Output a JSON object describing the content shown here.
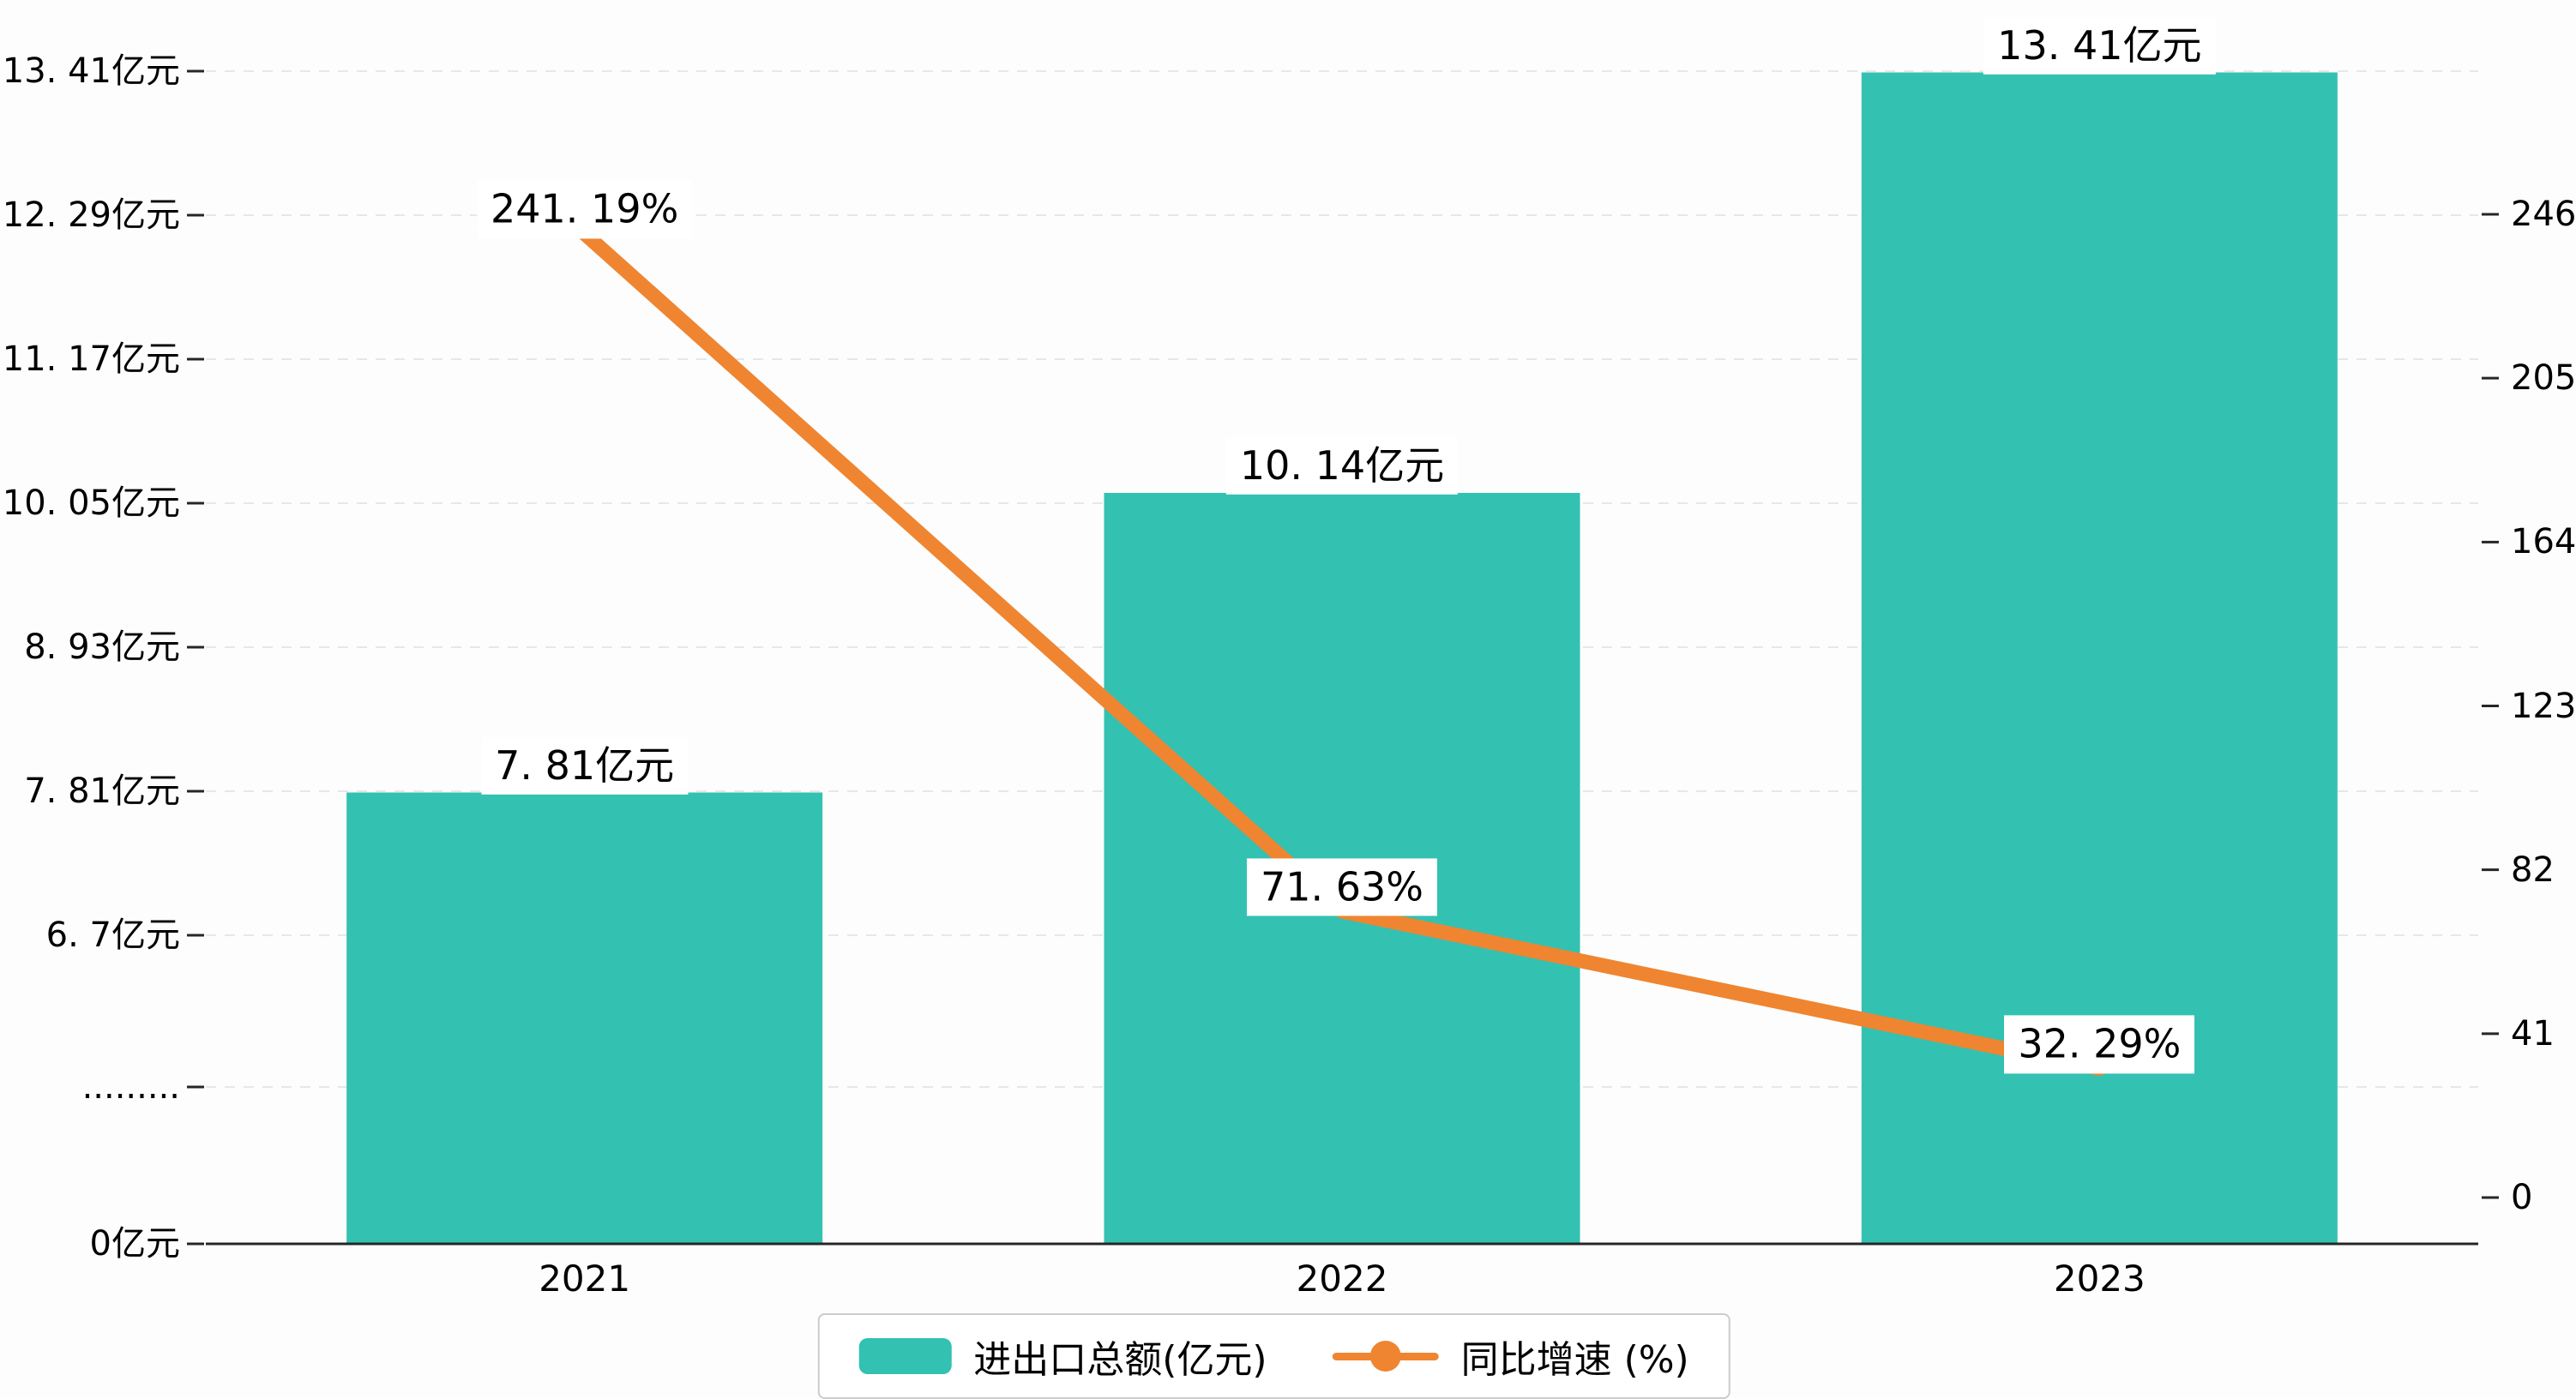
{
  "chart_data": {
    "type": "bar",
    "title": "",
    "categories": [
      "2021",
      "2022",
      "2023"
    ],
    "series": [
      {
        "name": "进出口总额(亿元)",
        "type": "bar",
        "axis": "left",
        "unit": "亿元",
        "values": [
          7.81,
          10.14,
          13.41
        ],
        "point_labels": [
          "7. 81亿元",
          "10. 14亿元",
          "13. 41亿元"
        ],
        "color": "#33c1b1"
      },
      {
        "name": "同比增速 (%)",
        "type": "line",
        "axis": "right",
        "unit": "%",
        "values": [
          241.19,
          71.63,
          32.29
        ],
        "point_labels": [
          "241. 19%",
          "71. 63%",
          "32. 29%"
        ],
        "color": "#ef8531"
      }
    ],
    "left_axis": {
      "broken_axis": true,
      "tick_labels": [
        "13. 41亿元",
        "12. 29亿元",
        "11. 17亿元",
        "10. 05亿元",
        "8. 93亿元",
        "7. 81亿元",
        "6. 7亿元",
        ".........",
        "0亿元"
      ],
      "tick_values": [
        13.41,
        12.29,
        11.17,
        10.05,
        8.93,
        7.81,
        6.7,
        null,
        0
      ]
    },
    "right_axis": {
      "tick_labels": [
        "246",
        "205",
        "164",
        "123",
        "82",
        "41",
        "0"
      ],
      "tick_values": [
        246,
        205,
        164,
        123,
        82,
        41,
        0
      ],
      "range": [
        0,
        246
      ]
    },
    "legend": {
      "position": "bottom-center",
      "items": [
        {
          "label": "进出口总额(亿元)",
          "marker": "bar-swatch",
          "color": "#33c1b1"
        },
        {
          "label": "同比增速 (%)",
          "marker": "line-dot",
          "color": "#ef8531"
        }
      ]
    },
    "grid": {
      "horizontal": true,
      "style": "dashed",
      "color": "#e5e8e7"
    }
  },
  "colors": {
    "background": "#fcfdfc",
    "bar": "#33c1b1",
    "line": "#ef8531",
    "grid": "#e5e8e7",
    "axis": "#262626",
    "text": "#000000",
    "label_background": "#ffffff"
  }
}
